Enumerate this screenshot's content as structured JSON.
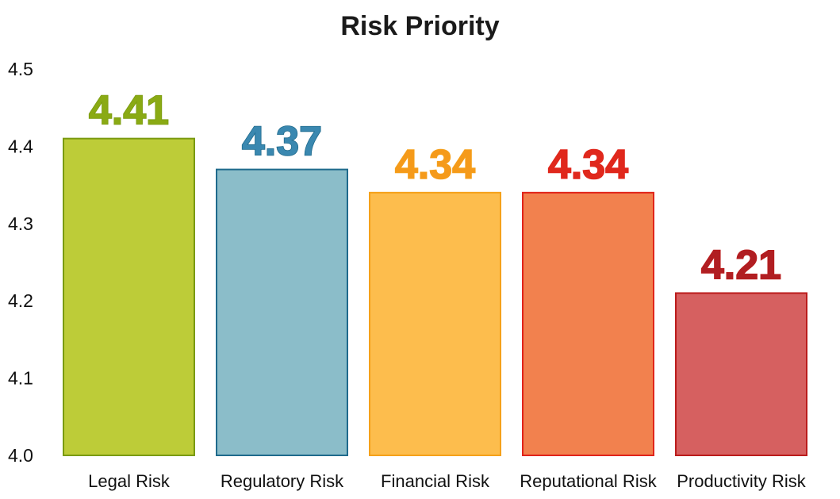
{
  "chart_data": {
    "type": "bar",
    "title": "Risk Priority",
    "xlabel": "",
    "ylabel": "",
    "categories": [
      "Legal Risk",
      "Regulatory Risk",
      "Financial Risk",
      "Reputational Risk",
      "Productivity Risk"
    ],
    "values": [
      4.41,
      4.37,
      4.34,
      4.34,
      4.21
    ],
    "data_labels": [
      "4.41",
      "4.37",
      "4.34",
      "4.34",
      "4.21"
    ],
    "ylim": [
      4.0,
      4.5
    ],
    "yticks": [
      "4.0",
      "4.1",
      "4.2",
      "4.3",
      "4.4",
      "4.5"
    ],
    "grid": false,
    "legend": "none",
    "bar_colors": [
      {
        "fill": "#bdcc38",
        "stroke": "#7a9a10",
        "label": "#8aaa14"
      },
      {
        "fill": "#8bbdc9",
        "stroke": "#1f6a8c",
        "label": "#3a88b0"
      },
      {
        "fill": "#fdbd4d",
        "stroke": "#f5a11a",
        "label": "#f59a1a"
      },
      {
        "fill": "#f2814e",
        "stroke": "#e0241a",
        "label": "#e0281c"
      },
      {
        "fill": "#d66060",
        "stroke": "#bb1c1c",
        "label": "#b01e22"
      }
    ]
  }
}
